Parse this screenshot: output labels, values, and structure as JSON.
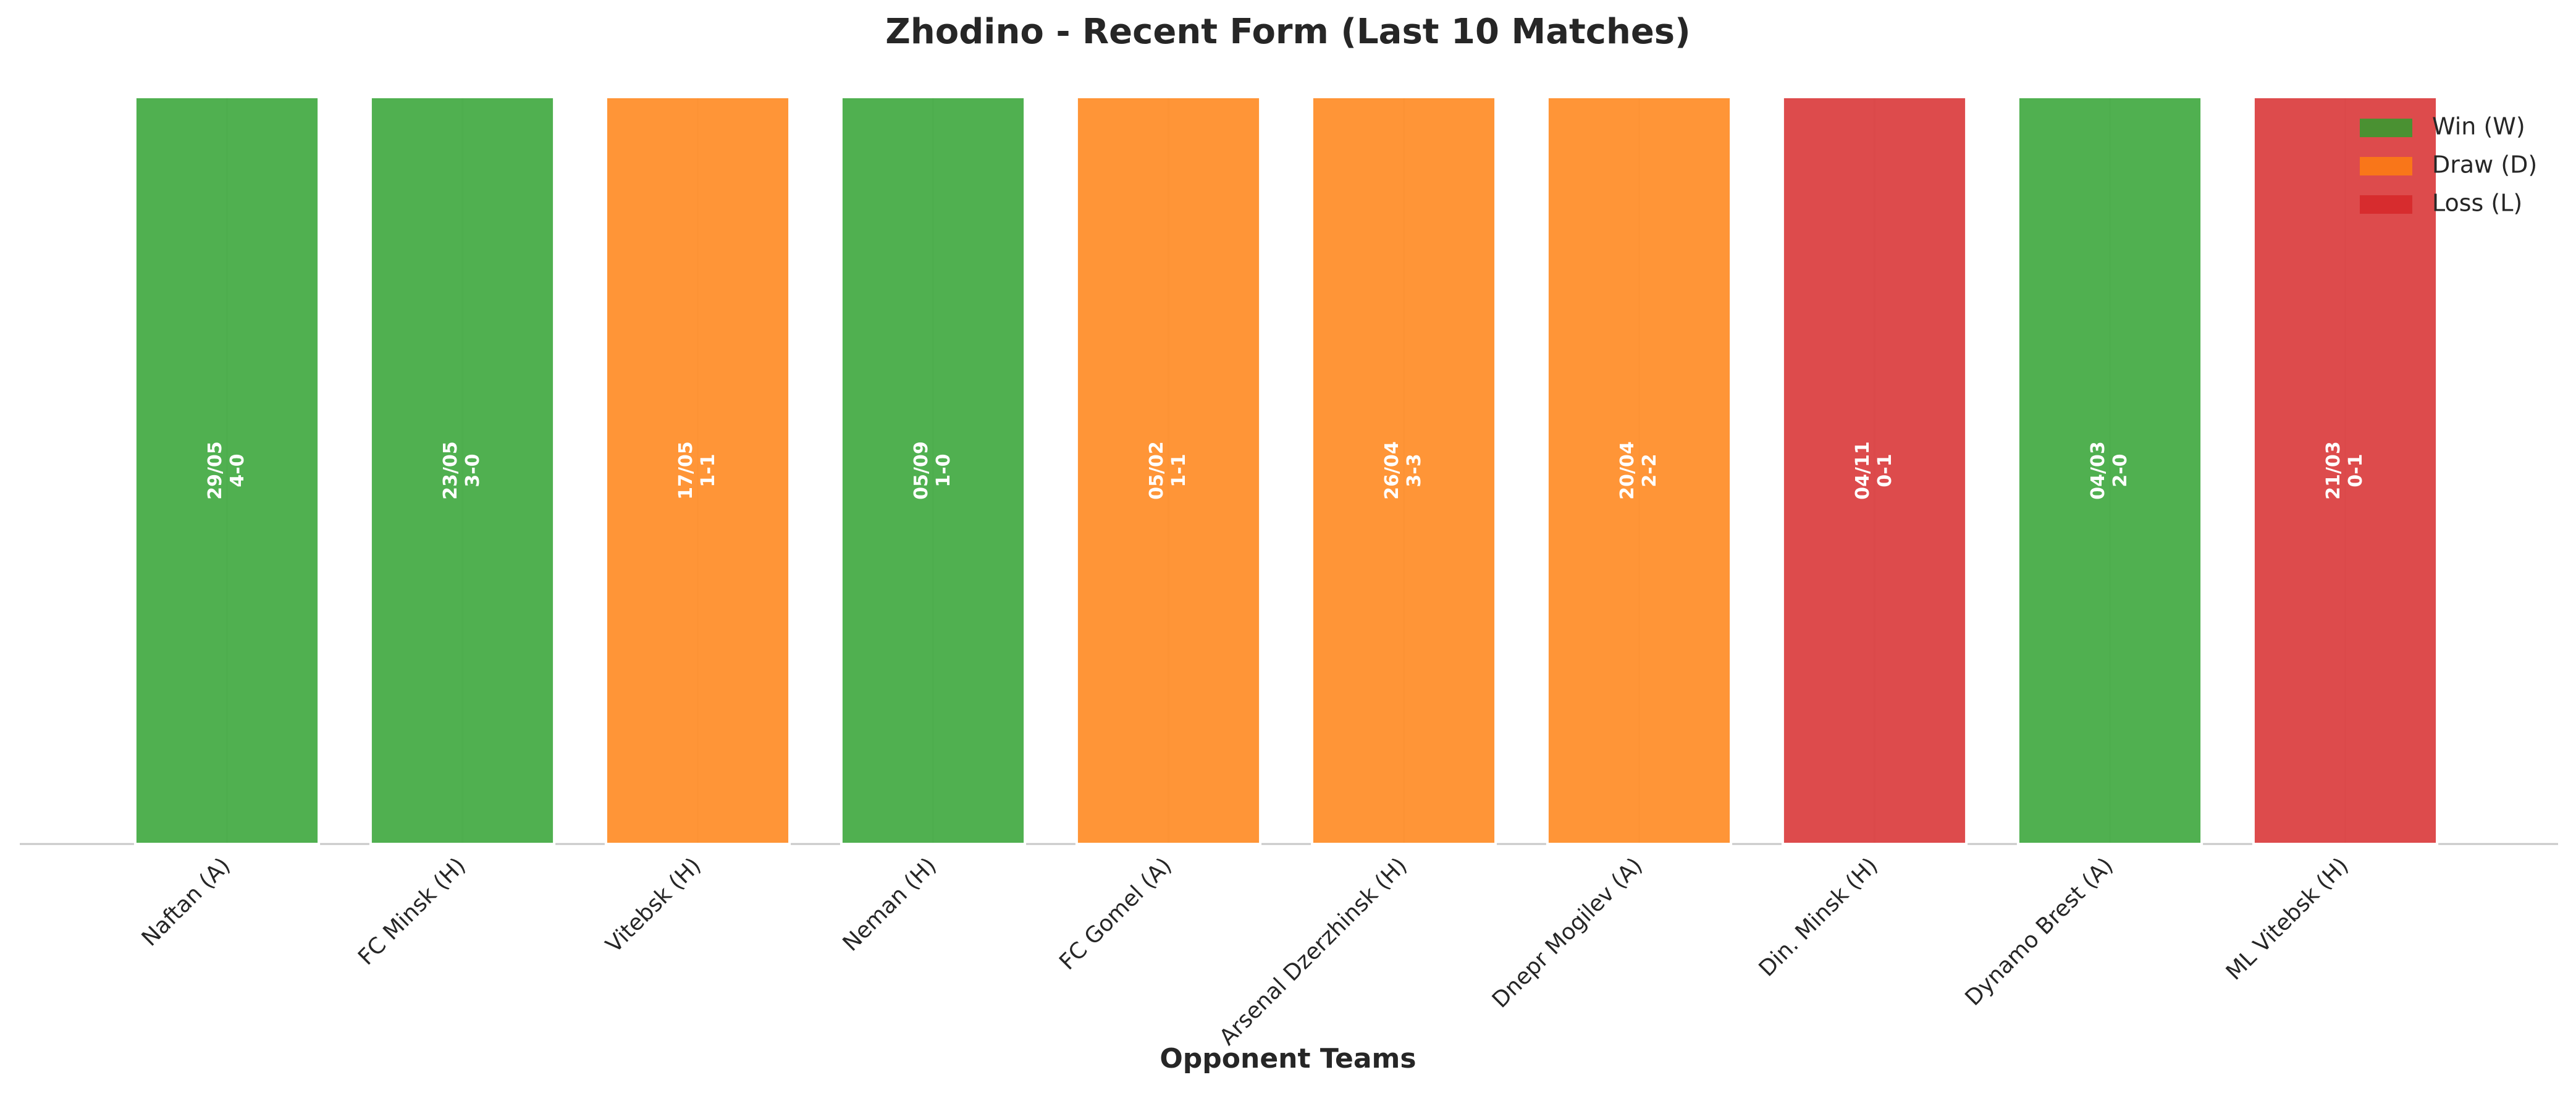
{
  "chart_data": {
    "type": "bar",
    "title": "Zhodino - Recent Form (Last 10 Matches)",
    "x_label": "Opponent Teams",
    "categories": [
      "Naftan (A)",
      "FC Minsk (H)",
      "Vitebsk (H)",
      "Neman (H)",
      "FC Gomel (A)",
      "Arsenal Dzerzhinsk (H)",
      "Dnepr Mogilev (A)",
      "Din. Minsk (H)",
      "Dynamo Brest (A)",
      "ML Vitebsk (H)"
    ],
    "dates": [
      "29/05",
      "23/05",
      "17/05",
      "05/09",
      "05/02",
      "26/04",
      "20/04",
      "04/11",
      "04/03",
      "21/03"
    ],
    "scores": [
      "4-0",
      "3-0",
      "1-1",
      "1-0",
      "1-1",
      "3-3",
      "2-2",
      "0-1",
      "2-0",
      "0-1"
    ],
    "series": [
      {
        "name": "Win (W)",
        "color": "#2ca02c",
        "values": [
          1,
          1,
          null,
          1,
          null,
          null,
          null,
          null,
          1,
          null
        ]
      },
      {
        "name": "Draw (D)",
        "color": "#ff7f0e",
        "values": [
          null,
          null,
          1,
          null,
          1,
          1,
          1,
          null,
          null,
          null
        ]
      },
      {
        "name": "Loss (L)",
        "color": "#d62728",
        "values": [
          null,
          null,
          null,
          null,
          null,
          null,
          null,
          1,
          null,
          1
        ]
      }
    ],
    "ylim": [
      0,
      1
    ],
    "legend": "upper right"
  }
}
